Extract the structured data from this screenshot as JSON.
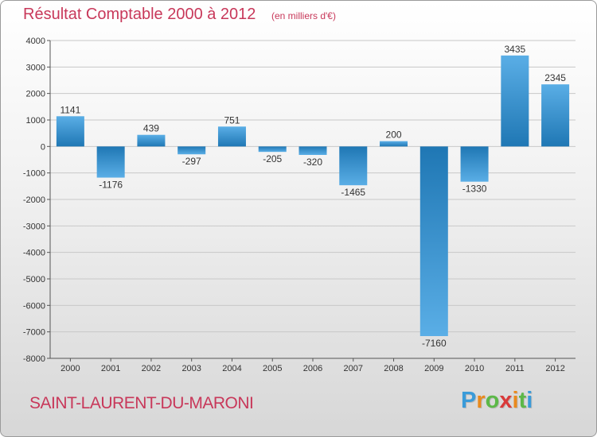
{
  "chart_data": {
    "type": "bar",
    "title": "Résultat Comptable 2000 à 2012",
    "subtitle": "(en milliers d'€)",
    "categories": [
      "2000",
      "2001",
      "2002",
      "2003",
      "2004",
      "2005",
      "2006",
      "2007",
      "2008",
      "2009",
      "2010",
      "2011",
      "2012"
    ],
    "values": [
      1141,
      -1176,
      439,
      -297,
      751,
      -205,
      -320,
      -1465,
      200,
      -7160,
      -1330,
      3435,
      2345
    ],
    "value_labels": [
      "1141",
      "-1176",
      "439",
      "-297",
      "751",
      "-205",
      "-320",
      "-1465",
      "200",
      "-7160",
      "-1330",
      "3435",
      "2345"
    ],
    "ylim": [
      -8000,
      4000
    ],
    "yticks": [
      4000,
      3000,
      2000,
      1000,
      0,
      -1000,
      -2000,
      -3000,
      -4000,
      -5000,
      -6000,
      -7000,
      -8000
    ],
    "ytick_labels": [
      "4000",
      "3000",
      "2000",
      "1000",
      "0",
      "-1000",
      "-2000",
      "-3000",
      "-4000",
      "-5000",
      "-6000",
      "-7000",
      "-8000"
    ],
    "xlabel": "",
    "ylabel": "",
    "grid": true,
    "colors": {
      "bar_dark": "#1f77b4",
      "bar_light": "#5aaee6",
      "grid": "#c8c8c8",
      "axis": "#555555"
    }
  },
  "footer": {
    "commune": "SAINT-LAURENT-DU-MARONI"
  },
  "logo": {
    "letters": [
      "P",
      "r",
      "o",
      "x",
      "i",
      "t",
      "i"
    ],
    "colors": [
      "#3a9bd9",
      "#e98a1d",
      "#5cb848",
      "#d93a3a",
      "#e98a1d",
      "#5cb848",
      "#3a9bd9"
    ]
  }
}
